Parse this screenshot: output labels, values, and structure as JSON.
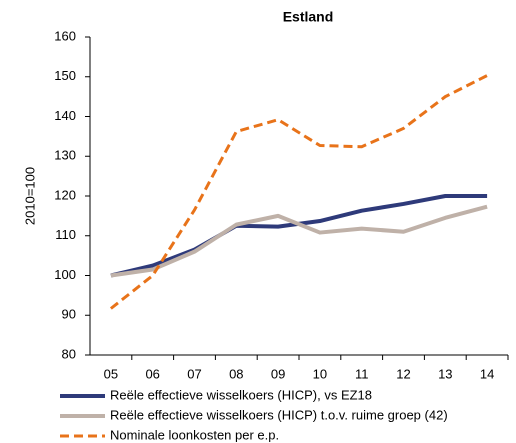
{
  "chart_data": {
    "type": "line",
    "title": "Estland",
    "ylabel": "2010=100",
    "categories": [
      "05",
      "06",
      "07",
      "08",
      "09",
      "10",
      "11",
      "12",
      "13",
      "14"
    ],
    "ylim": [
      80,
      160
    ],
    "yticks": [
      80,
      90,
      100,
      110,
      120,
      130,
      140,
      150,
      160
    ],
    "grid": false,
    "series": [
      {
        "name": "Reële effectieve wisselkoers (HICP), vs EZ18",
        "color": "#2e3a7a",
        "dashed": false,
        "values": [
          100,
          102.5,
          106.5,
          112.5,
          112.3,
          113.7,
          116.3,
          118,
          120,
          120
        ]
      },
      {
        "name": "Reële effectieve wisselkoers (HICP) t.o.v. ruime groep (42)",
        "color": "#bfb1a8",
        "dashed": false,
        "values": [
          100,
          101.5,
          106,
          112.8,
          115,
          110.8,
          111.8,
          111,
          114.5,
          117.3
        ]
      },
      {
        "name": "Nominale loonkosten per e.p.",
        "color": "#e8731a",
        "dashed": true,
        "values": [
          91.7,
          100,
          116.5,
          136.2,
          139.2,
          132.7,
          132.4,
          137,
          145,
          150.3
        ]
      }
    ]
  }
}
